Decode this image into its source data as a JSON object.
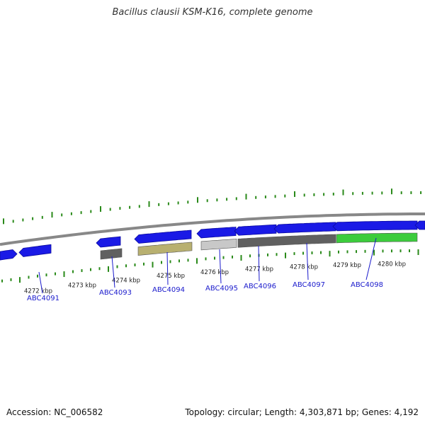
{
  "title": "Bacillus clausii KSM-K16, complete genome",
  "footer": {
    "accession": "Accession: NC_006582",
    "topology": "Topology: circular; Length: 4,303,871 bp; Genes: 4,192"
  },
  "kbp_labels": [
    "4272 kbp",
    "4273 kbp",
    "4274 kbp",
    "4275 kbp",
    "4276 kbp",
    "4277 kbp",
    "4278 kbp",
    "4279 kbp",
    "4280 kbp"
  ],
  "gene_labels": [
    "ABC4091",
    "ABC4093",
    "ABC4094",
    "ABC4095",
    "ABC4096",
    "ABC4097",
    "ABC4098"
  ],
  "colors": {
    "cds": "#1a1ae6",
    "cds_dark": "#0a0aa0",
    "dark_gray": "#606060",
    "olive": "#b8b070",
    "light_gray": "#c8c8c8",
    "green": "#3ccc3c",
    "backbone": "#888888",
    "tick": "#2a8a1a",
    "label_link": "#1a1acc"
  }
}
